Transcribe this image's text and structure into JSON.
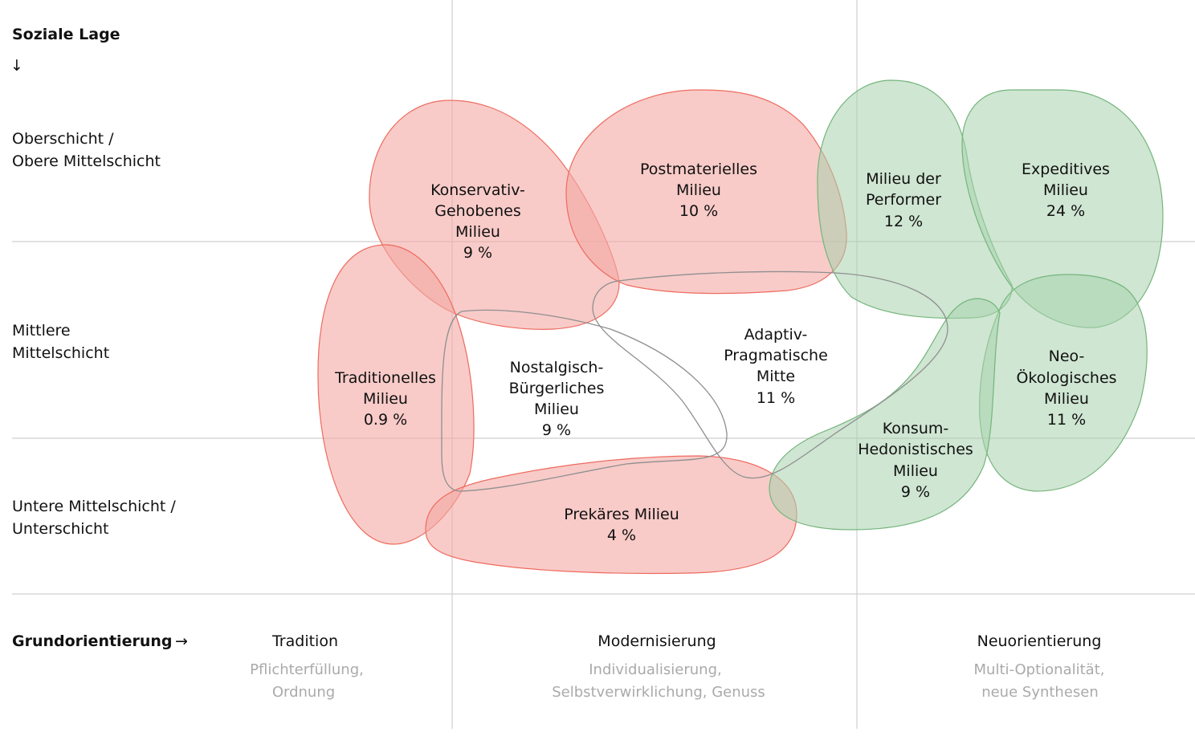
{
  "y_axis": {
    "title": "Soziale Lage",
    "arrow": "↓",
    "rows": [
      {
        "line1": "Oberschicht /",
        "line2": "Obere Mittelschicht"
      },
      {
        "line1": "Mittlere",
        "line2": "Mittelschicht"
      },
      {
        "line1": "Untere Mittelschicht /",
        "line2": "Unterschicht"
      }
    ]
  },
  "x_axis": {
    "title": "Grundorientierung",
    "arrow": "→",
    "columns": [
      {
        "label": "Tradition",
        "sub1": "Pflichterfüllung,",
        "sub2": "Ordnung"
      },
      {
        "label": "Modernisierung",
        "sub1": "Individualisierung,",
        "sub2": "Selbstverwirklichung, Genuss"
      },
      {
        "label": "Neuorientierung",
        "sub1": "Multi-Optionalität,",
        "sub2": "neue Synthesen"
      }
    ]
  },
  "colors": {
    "traditional": "#ee6b5f",
    "new": "#74b57b",
    "outline": "#8f8f8f"
  },
  "milieus": [
    {
      "lines": [
        "Konservativ-",
        "Gehobenes",
        "Milieu"
      ],
      "share": "9 %"
    },
    {
      "lines": [
        "Postmaterielles",
        "Milieu"
      ],
      "share": "10 %"
    },
    {
      "lines": [
        "Milieu der",
        "Performer"
      ],
      "share": "12 %"
    },
    {
      "lines": [
        "Expeditives",
        "Milieu"
      ],
      "share": "24 %"
    },
    {
      "lines": [
        "Traditionelles",
        "Milieu"
      ],
      "share": "0.9 %"
    },
    {
      "lines": [
        "Nostalgisch-",
        "Bürgerliches",
        "Milieu"
      ],
      "share": "9 %"
    },
    {
      "lines": [
        "Adaptiv-",
        "Pragmatische",
        "Mitte"
      ],
      "share": "11 %"
    },
    {
      "lines": [
        "Neo-",
        "Ökologisches",
        "Milieu"
      ],
      "share": "11 %"
    },
    {
      "lines": [
        "Konsum-",
        "Hedonistisches",
        "Milieu"
      ],
      "share": "9 %"
    },
    {
      "lines": [
        "Prekäres Milieu"
      ],
      "share": "4 %"
    }
  ]
}
